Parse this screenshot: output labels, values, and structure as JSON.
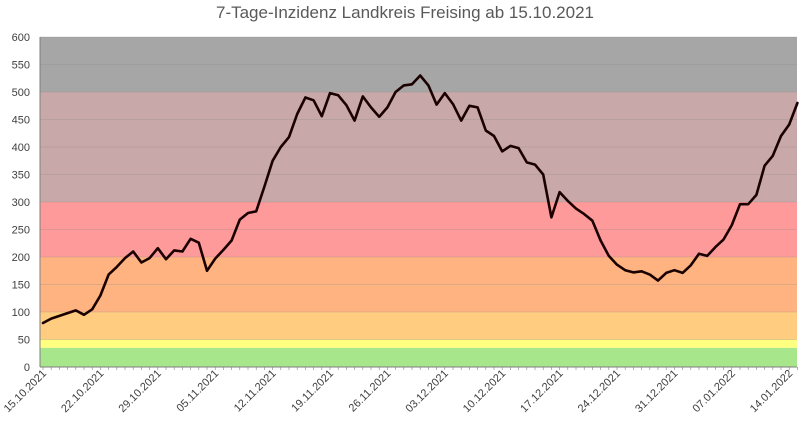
{
  "chart_data": {
    "type": "line",
    "title": "7-Tage-Inzidenz Landkreis Freising ab 15.10.2021",
    "xlabel": "",
    "ylabel": "",
    "ylim": [
      0,
      600
    ],
    "yticks": [
      0,
      50,
      100,
      150,
      200,
      250,
      300,
      350,
      400,
      450,
      500,
      550,
      600
    ],
    "xticks": [
      "15.10.2021",
      "22.10.2021",
      "29.10.2021",
      "05.11.2021",
      "12.11.2021",
      "19.11.2021",
      "26.11.2021",
      "03.12.2021",
      "10.12.2021",
      "17.12.2021",
      "24.12.2021",
      "31.12.2021",
      "07.01.2022",
      "14.01.2022"
    ],
    "grid": true,
    "bands": [
      {
        "from": 0,
        "to": 35,
        "color": "#a8e68c"
      },
      {
        "from": 35,
        "to": 50,
        "color": "#ffff80"
      },
      {
        "from": 50,
        "to": 100,
        "color": "#ffcc80"
      },
      {
        "from": 100,
        "to": 200,
        "color": "#ffb380"
      },
      {
        "from": 200,
        "to": 300,
        "color": "#ff9a9a"
      },
      {
        "from": 300,
        "to": 500,
        "color": "#c8a8a8"
      },
      {
        "from": 500,
        "to": 600,
        "color": "#a6a6a6"
      }
    ],
    "series": [
      {
        "color": "#1a0000",
        "values": [
          80,
          88,
          93,
          98,
          103,
          95,
          105,
          130,
          168,
          182,
          198,
          210,
          190,
          198,
          216,
          196,
          212,
          210,
          233,
          226,
          175,
          197,
          213,
          230,
          268,
          280,
          283,
          328,
          375,
          400,
          418,
          460,
          490,
          485,
          456,
          498,
          494,
          476,
          448,
          492,
          472,
          455,
          472,
          500,
          512,
          514,
          530,
          512,
          477,
          498,
          478,
          448,
          475,
          472,
          430,
          420,
          392,
          402,
          398,
          372,
          368,
          350,
          272,
          318,
          302,
          288,
          278,
          266,
          230,
          202,
          186,
          176,
          172,
          174,
          168,
          157,
          171,
          176,
          171,
          185,
          206,
          202,
          218,
          232,
          258,
          296,
          296,
          313,
          366,
          384,
          420,
          441,
          480
        ]
      }
    ]
  }
}
